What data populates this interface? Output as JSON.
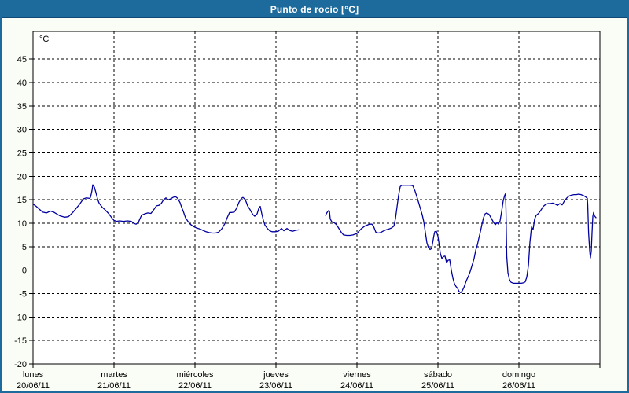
{
  "window": {
    "title": "Punto de rocío [°C]"
  },
  "colors": {
    "titlebar_bg": "#1d6a9c",
    "titlebar_border": "#0e4c77",
    "window_border": "#1d6a9c",
    "window_bg": "#fafdf6",
    "plot_bg": "#ffffff",
    "axis": "#000000",
    "grid": "#000000",
    "text": "#000000",
    "line": "#0000a0"
  },
  "chart_data": {
    "type": "line",
    "title": "Punto de rocío [°C]",
    "unit_label": "°C",
    "ylim": [
      -20,
      50.9
    ],
    "yticks": [
      45,
      40,
      35,
      30,
      25,
      20,
      15,
      10,
      5,
      0,
      -5,
      -10,
      -15,
      -20
    ],
    "xlim_days": [
      0,
      7
    ],
    "grid": "dashed",
    "legend": "none",
    "line_color": "#0000a0",
    "x_categories": [
      {
        "name": "lunes",
        "date": "20/06/11"
      },
      {
        "name": "martes",
        "date": "21/06/11"
      },
      {
        "name": "miércoles",
        "date": "22/06/11"
      },
      {
        "name": "jueves",
        "date": "23/06/11"
      },
      {
        "name": "viernes",
        "date": "24/06/11"
      },
      {
        "name": "sábado",
        "date": "25/06/11"
      },
      {
        "name": "domingo",
        "date": "26/06/11"
      }
    ],
    "series": [
      {
        "name": "Punto de rocío",
        "units": {
          "x": "days since 20/06/11 00:00",
          "y": "°C"
        },
        "segments": [
          [
            [
              0.0,
              14.1
            ],
            [
              0.039,
              13.6
            ],
            [
              0.078,
              13.0
            ],
            [
              0.117,
              12.4
            ],
            [
              0.165,
              12.2
            ],
            [
              0.214,
              12.6
            ],
            [
              0.252,
              12.4
            ],
            [
              0.291,
              12.0
            ],
            [
              0.33,
              11.6
            ],
            [
              0.388,
              11.3
            ],
            [
              0.437,
              11.4
            ],
            [
              0.485,
              12.2
            ],
            [
              0.534,
              13.2
            ],
            [
              0.573,
              14.0
            ],
            [
              0.621,
              15.2
            ],
            [
              0.66,
              15.4
            ],
            [
              0.699,
              15.3
            ],
            [
              0.709,
              15.5
            ],
            [
              0.718,
              16.2
            ],
            [
              0.728,
              17.0
            ],
            [
              0.738,
              18.2
            ],
            [
              0.757,
              17.7
            ],
            [
              0.777,
              16.5
            ],
            [
              0.796,
              15.2
            ],
            [
              0.816,
              14.3
            ],
            [
              0.854,
              13.4
            ],
            [
              0.893,
              12.8
            ],
            [
              0.932,
              12.1
            ],
            [
              0.971,
              11.2
            ],
            [
              1.0,
              10.6
            ],
            [
              1.029,
              10.4
            ],
            [
              1.068,
              10.5
            ],
            [
              1.117,
              10.4
            ],
            [
              1.165,
              10.5
            ],
            [
              1.214,
              10.4
            ],
            [
              1.243,
              10.0
            ],
            [
              1.272,
              9.8
            ],
            [
              1.301,
              10.2
            ],
            [
              1.34,
              11.7
            ],
            [
              1.379,
              12.0
            ],
            [
              1.417,
              12.2
            ],
            [
              1.456,
              12.1
            ],
            [
              1.495,
              13.0
            ],
            [
              1.524,
              13.7
            ],
            [
              1.553,
              13.8
            ],
            [
              1.583,
              14.2
            ],
            [
              1.612,
              15.0
            ],
            [
              1.641,
              15.4
            ],
            [
              1.67,
              15.0
            ],
            [
              1.699,
              15.2
            ],
            [
              1.728,
              15.5
            ],
            [
              1.757,
              15.7
            ],
            [
              1.786,
              15.3
            ],
            [
              1.816,
              14.4
            ],
            [
              1.835,
              13.4
            ],
            [
              1.854,
              12.6
            ],
            [
              1.883,
              11.2
            ],
            [
              1.913,
              10.4
            ],
            [
              1.942,
              9.8
            ],
            [
              1.981,
              9.3
            ],
            [
              2.019,
              9.0
            ],
            [
              2.058,
              8.8
            ],
            [
              2.097,
              8.5
            ],
            [
              2.136,
              8.2
            ],
            [
              2.175,
              8.0
            ],
            [
              2.214,
              7.9
            ],
            [
              2.252,
              7.9
            ],
            [
              2.291,
              8.1
            ],
            [
              2.33,
              8.8
            ],
            [
              2.369,
              9.9
            ],
            [
              2.398,
              11.2
            ],
            [
              2.427,
              12.3
            ],
            [
              2.456,
              12.3
            ],
            [
              2.485,
              12.4
            ],
            [
              2.514,
              13.2
            ],
            [
              2.544,
              14.5
            ],
            [
              2.573,
              15.3
            ],
            [
              2.592,
              15.5
            ],
            [
              2.612,
              15.2
            ],
            [
              2.631,
              14.6
            ],
            [
              2.65,
              13.7
            ],
            [
              2.68,
              12.9
            ],
            [
              2.699,
              12.3
            ],
            [
              2.718,
              11.8
            ],
            [
              2.738,
              11.5
            ],
            [
              2.767,
              12.0
            ],
            [
              2.786,
              13.1
            ],
            [
              2.806,
              13.6
            ],
            [
              2.825,
              12.0
            ],
            [
              2.845,
              10.6
            ],
            [
              2.864,
              9.6
            ],
            [
              2.893,
              8.9
            ],
            [
              2.922,
              8.4
            ],
            [
              2.951,
              8.2
            ],
            [
              2.99,
              8.2
            ],
            [
              3.029,
              8.3
            ],
            [
              3.068,
              8.9
            ],
            [
              3.097,
              8.4
            ],
            [
              3.136,
              8.9
            ],
            [
              3.165,
              8.5
            ],
            [
              3.204,
              8.3
            ],
            [
              3.243,
              8.5
            ],
            [
              3.282,
              8.6
            ]
          ],
          [
            [
              3.612,
              11.7
            ],
            [
              3.631,
              12.3
            ],
            [
              3.65,
              12.7
            ],
            [
              3.66,
              12.6
            ],
            [
              3.67,
              10.9
            ],
            [
              3.689,
              10.3
            ],
            [
              3.718,
              10.1
            ],
            [
              3.748,
              9.7
            ],
            [
              3.777,
              8.9
            ],
            [
              3.806,
              8.1
            ],
            [
              3.835,
              7.5
            ],
            [
              3.874,
              7.4
            ],
            [
              3.913,
              7.4
            ],
            [
              3.951,
              7.5
            ],
            [
              3.981,
              7.7
            ],
            [
              4.0,
              7.8
            ],
            [
              4.029,
              8.4
            ],
            [
              4.058,
              8.9
            ],
            [
              4.097,
              9.4
            ],
            [
              4.126,
              9.6
            ],
            [
              4.155,
              9.8
            ],
            [
              4.184,
              9.8
            ],
            [
              4.204,
              9.4
            ],
            [
              4.233,
              8.1
            ],
            [
              4.262,
              7.9
            ],
            [
              4.291,
              8.0
            ],
            [
              4.32,
              8.3
            ],
            [
              4.359,
              8.6
            ],
            [
              4.398,
              8.8
            ],
            [
              4.427,
              9.0
            ],
            [
              4.456,
              9.4
            ],
            [
              4.476,
              11.0
            ],
            [
              4.495,
              13.5
            ],
            [
              4.515,
              16.0
            ],
            [
              4.534,
              17.8
            ],
            [
              4.553,
              18.1
            ],
            [
              4.583,
              18.1
            ],
            [
              4.621,
              18.1
            ],
            [
              4.66,
              18.1
            ],
            [
              4.689,
              18.0
            ],
            [
              4.718,
              16.8
            ],
            [
              4.748,
              15.2
            ],
            [
              4.777,
              13.5
            ],
            [
              4.806,
              11.8
            ],
            [
              4.825,
              10.3
            ],
            [
              4.845,
              8.0
            ],
            [
              4.864,
              5.8
            ],
            [
              4.883,
              4.8
            ],
            [
              4.903,
              4.4
            ],
            [
              4.922,
              4.6
            ],
            [
              4.951,
              7.5
            ],
            [
              4.961,
              8.2
            ],
            [
              4.981,
              8.3
            ],
            [
              5.0,
              7.2
            ],
            [
              5.01,
              6.1
            ],
            [
              5.029,
              3.6
            ],
            [
              5.049,
              2.5
            ],
            [
              5.068,
              2.9
            ],
            [
              5.087,
              3.0
            ],
            [
              5.107,
              1.6
            ],
            [
              5.126,
              2.1
            ],
            [
              5.146,
              2.2
            ],
            [
              5.165,
              0.0
            ],
            [
              5.184,
              -1.7
            ],
            [
              5.204,
              -2.9
            ],
            [
              5.223,
              -3.5
            ],
            [
              5.243,
              -3.9
            ],
            [
              5.262,
              -4.6
            ],
            [
              5.282,
              -4.8
            ],
            [
              5.301,
              -4.4
            ],
            [
              5.32,
              -3.7
            ],
            [
              5.35,
              -2.3
            ],
            [
              5.379,
              -1.2
            ],
            [
              5.398,
              -0.3
            ],
            [
              5.417,
              0.8
            ],
            [
              5.447,
              2.5
            ],
            [
              5.466,
              4.2
            ],
            [
              5.485,
              5.3
            ],
            [
              5.505,
              6.8
            ],
            [
              5.524,
              8.2
            ],
            [
              5.544,
              9.8
            ],
            [
              5.563,
              11.2
            ],
            [
              5.583,
              12.0
            ],
            [
              5.602,
              12.2
            ],
            [
              5.631,
              11.9
            ],
            [
              5.66,
              11.0
            ],
            [
              5.689,
              10.1
            ],
            [
              5.709,
              9.7
            ],
            [
              5.728,
              10.1
            ],
            [
              5.748,
              9.8
            ],
            [
              5.767,
              10.5
            ],
            [
              5.786,
              12.5
            ],
            [
              5.806,
              14.8
            ],
            [
              5.825,
              16.0
            ],
            [
              5.835,
              16.3
            ],
            [
              5.84,
              13.0
            ],
            [
              5.85,
              3.0
            ],
            [
              5.864,
              -0.5
            ],
            [
              5.883,
              -2.0
            ],
            [
              5.903,
              -2.6
            ],
            [
              5.932,
              -2.8
            ],
            [
              5.961,
              -2.8
            ],
            [
              6.0,
              -2.8
            ],
            [
              6.029,
              -2.8
            ],
            [
              6.058,
              -2.7
            ],
            [
              6.078,
              -2.5
            ],
            [
              6.097,
              -1.5
            ],
            [
              6.117,
              1.0
            ],
            [
              6.136,
              6.0
            ],
            [
              6.155,
              9.2
            ],
            [
              6.175,
              8.7
            ],
            [
              6.194,
              10.9
            ],
            [
              6.214,
              11.7
            ],
            [
              6.243,
              12.1
            ],
            [
              6.272,
              12.8
            ],
            [
              6.301,
              13.6
            ],
            [
              6.33,
              14.0
            ],
            [
              6.359,
              14.2
            ],
            [
              6.388,
              14.2
            ],
            [
              6.417,
              14.3
            ],
            [
              6.447,
              14.1
            ],
            [
              6.476,
              13.8
            ],
            [
              6.505,
              14.2
            ],
            [
              6.534,
              13.9
            ],
            [
              6.563,
              14.8
            ],
            [
              6.592,
              15.4
            ],
            [
              6.621,
              15.8
            ],
            [
              6.65,
              16.0
            ],
            [
              6.68,
              16.1
            ],
            [
              6.709,
              16.1
            ],
            [
              6.738,
              16.2
            ],
            [
              6.767,
              16.1
            ],
            [
              6.796,
              15.9
            ],
            [
              6.825,
              15.6
            ],
            [
              6.845,
              15.3
            ],
            [
              6.85,
              14.0
            ],
            [
              6.86,
              8.0
            ],
            [
              6.874,
              4.2
            ],
            [
              6.883,
              2.6
            ],
            [
              6.893,
              4.0
            ],
            [
              6.903,
              8.0
            ],
            [
              6.913,
              11.5
            ],
            [
              6.922,
              12.3
            ],
            [
              6.932,
              11.6
            ],
            [
              6.951,
              11.2
            ]
          ]
        ]
      }
    ]
  }
}
